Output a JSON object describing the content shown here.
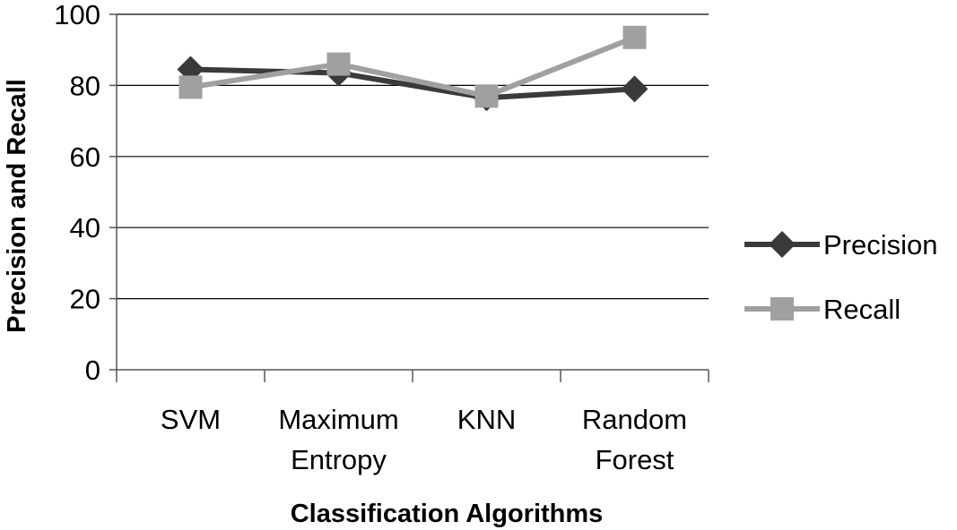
{
  "chart_data": {
    "type": "line",
    "categories": [
      [
        "SVM"
      ],
      [
        "Maximum",
        "Entropy"
      ],
      [
        "KNN"
      ],
      [
        "Random",
        "Forest"
      ]
    ],
    "series": [
      {
        "name": "Precision",
        "values": [
          84.5,
          83.5,
          76.5,
          79.0
        ],
        "color": "#3a3a3a",
        "marker": "diamond"
      },
      {
        "name": "Recall",
        "values": [
          79.5,
          86.0,
          77.0,
          93.5
        ],
        "color": "#a0a0a0",
        "marker": "square"
      }
    ],
    "xlabel": "Classification Algorithms",
    "ylabel": "Precision and Recall",
    "ylim": [
      0,
      100
    ],
    "yticks": [
      0,
      20,
      40,
      60,
      80,
      100
    ],
    "grid": true,
    "legend_position": "right"
  }
}
